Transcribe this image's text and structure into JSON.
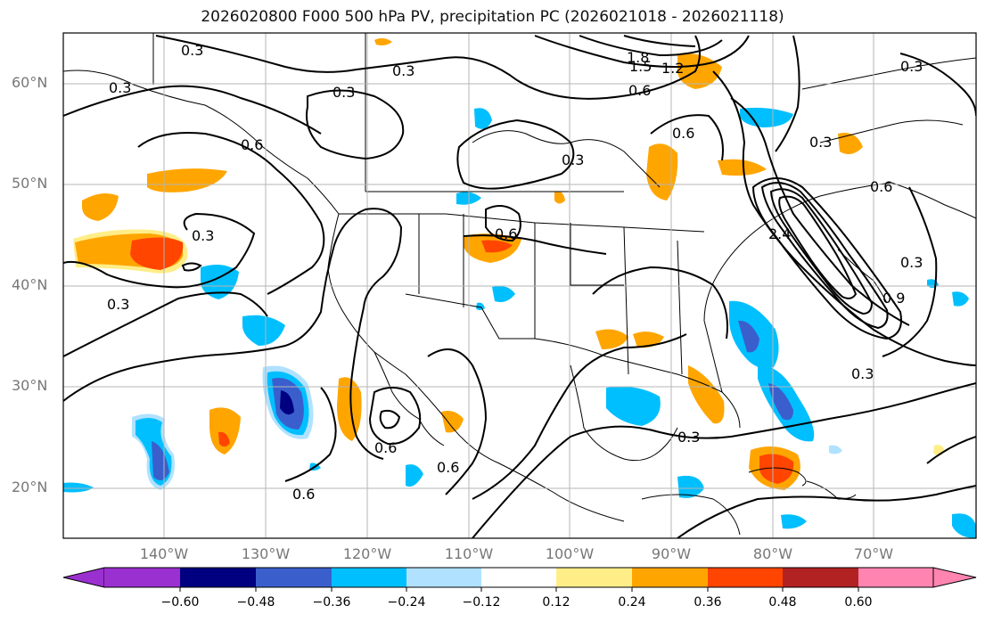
{
  "title": "2026020800 F000 500 hPa PV, precipitation PC (2026021018 - 2026021118)",
  "axes": {
    "lat_labels": [
      "60°N",
      "50°N",
      "40°N",
      "30°N",
      "20°N"
    ],
    "lon_labels": [
      "140°W",
      "130°W",
      "120°W",
      "110°W",
      "100°W",
      "90°W",
      "80°W",
      "70°W"
    ]
  },
  "contour_labels": [
    "0.3",
    "0.3",
    "0.3",
    "0.3",
    "0.6",
    "0.3",
    "0.3",
    "0.6",
    "0.3",
    "0.6",
    "0.6",
    "0.6",
    "0.3",
    "0.6",
    "0.3",
    "0.3",
    "1.8",
    "1.5",
    "1.2",
    "0.6",
    "0.6",
    "2.4",
    "0.9",
    "0.3",
    "0.3"
  ],
  "colorbar": {
    "colors": [
      "#9b30d0",
      "#000080",
      "#3a5fcd",
      "#00bfff",
      "#b0e2ff",
      "#ffffff",
      "#ffee88",
      "#ffa500",
      "#ff4500",
      "#b22222",
      "#ff85b0"
    ],
    "ticks": [
      "−0.60",
      "−0.48",
      "−0.36",
      "−0.24",
      "−0.12",
      "0.12",
      "0.24",
      "0.36",
      "0.48",
      "0.60"
    ]
  },
  "legend_colors": {
    "neg_light": "#b0e2ff",
    "neg_mid": "#00bfff",
    "neg_strong": "#3a5fcd",
    "neg_max": "#000080",
    "pos_light": "#ffee88",
    "pos_mid": "#ffa500",
    "pos_strong": "#ff4500"
  }
}
